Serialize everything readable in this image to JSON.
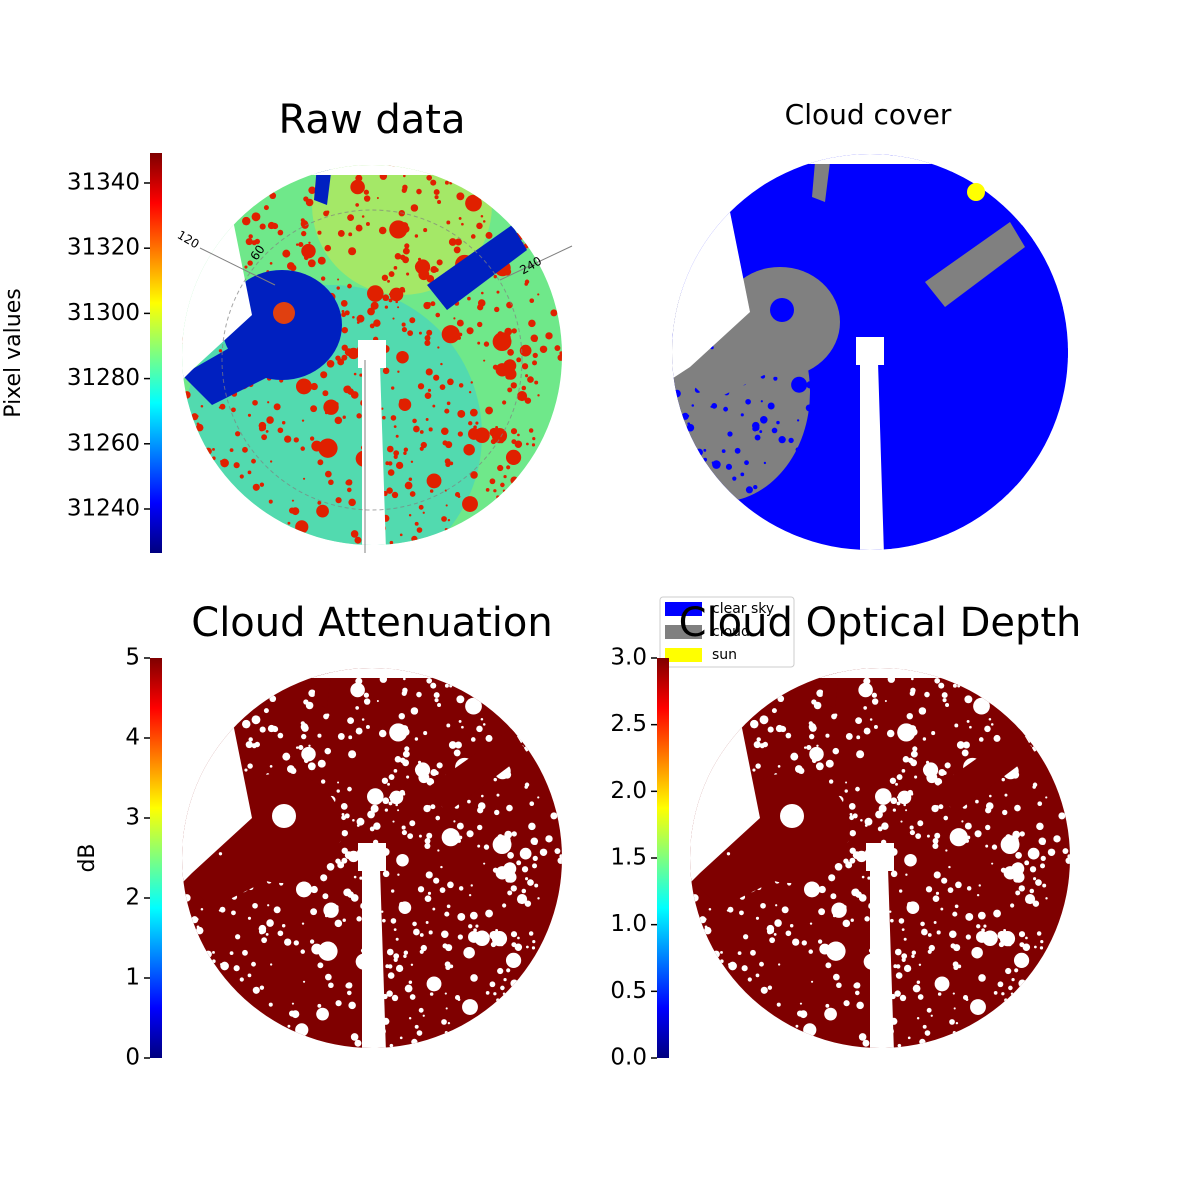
{
  "chart_data": [
    {
      "type": "image",
      "title": "Raw data",
      "colorbar": {
        "label": "Pixel values",
        "ylim": [
          31226.5,
          31349.2
        ],
        "yticks": [
          31240,
          31260,
          31280,
          31300,
          31320,
          31340
        ],
        "colormap": "jet"
      },
      "annotations": [
        "120",
        "60",
        "240"
      ]
    },
    {
      "type": "image",
      "title": "Cloud cover",
      "series": [
        {
          "name": "clear sky",
          "color": "#0000ff"
        },
        {
          "name": "cloud",
          "color": "#808080"
        },
        {
          "name": "sun",
          "color": "#ffff00"
        }
      ]
    },
    {
      "type": "image",
      "title": "Cloud Attenuation",
      "colorbar": {
        "label": "dB",
        "ylim": [
          0,
          5
        ],
        "yticks": [
          0,
          1,
          2,
          3,
          4,
          5
        ],
        "colormap": "jet"
      }
    },
    {
      "type": "image",
      "title": "Cloud Optical Depth",
      "colorbar": {
        "ylim": [
          0,
          3
        ],
        "yticks": [
          {
            "value": 0,
            "label": "0.0"
          },
          {
            "value": 0.5,
            "label": "0.5"
          },
          {
            "value": 1,
            "label": "1.0"
          },
          {
            "value": 1.5,
            "label": "1.5"
          },
          {
            "value": 2,
            "label": "2.0"
          },
          {
            "value": 2.5,
            "label": "2.5"
          },
          {
            "value": 3,
            "label": "3.0"
          }
        ],
        "colormap": "jet"
      }
    }
  ]
}
